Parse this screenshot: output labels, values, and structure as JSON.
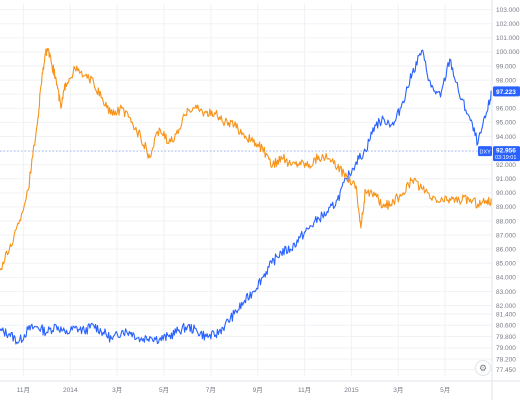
{
  "chart_data": {
    "type": "line",
    "title": "",
    "xlabel": "",
    "ylabel": "",
    "ylim": [
      77.0,
      103.4
    ],
    "y_ticks": [
      "77.450",
      "78.200",
      "79.000",
      "79.800",
      "80.600",
      "81.400",
      "82.000",
      "83.000",
      "84.000",
      "85.000",
      "86.000",
      "87.000",
      "88.000",
      "89.000",
      "90.000",
      "91.000",
      "92.000",
      "93.000",
      "94.000",
      "95.000",
      "96.000",
      "97.000",
      "98.000",
      "99.000",
      "100.000",
      "101.000",
      "102.000",
      "103.000"
    ],
    "x_ticks": [
      {
        "label": "11月",
        "x": 1
      },
      {
        "label": "2014",
        "x": 3
      },
      {
        "label": "3月",
        "x": 5
      },
      {
        "label": "5月",
        "x": 7
      },
      {
        "label": "7月",
        "x": 9
      },
      {
        "label": "9月",
        "x": 11
      },
      {
        "label": "11月",
        "x": 13
      },
      {
        "label": "2015",
        "x": 15
      },
      {
        "label": "3月",
        "x": 17
      },
      {
        "label": "5月",
        "x": 19
      }
    ],
    "grid": true,
    "reference_line": 92.956,
    "series": [
      {
        "color": "#2962ff",
        "last_value_label": "97.223",
        "points": [
          [
            0,
            80.2
          ],
          [
            0.4,
            80.0
          ],
          [
            0.8,
            79.4
          ],
          [
            1.2,
            80.3
          ],
          [
            1.6,
            80.5
          ],
          [
            2.0,
            80.1
          ],
          [
            2.4,
            80.6
          ],
          [
            2.8,
            80.0
          ],
          [
            3.2,
            80.4
          ],
          [
            3.6,
            80.2
          ],
          [
            4.0,
            80.6
          ],
          [
            4.4,
            80.1
          ],
          [
            4.8,
            79.6
          ],
          [
            5.2,
            80.2
          ],
          [
            5.6,
            80.1
          ],
          [
            6.0,
            79.6
          ],
          [
            6.4,
            79.8
          ],
          [
            6.8,
            79.6
          ],
          [
            7.2,
            79.8
          ],
          [
            7.6,
            80.2
          ],
          [
            8.0,
            80.5
          ],
          [
            8.4,
            80.2
          ],
          [
            8.8,
            79.8
          ],
          [
            9.2,
            79.9
          ],
          [
            9.6,
            80.6
          ],
          [
            10.0,
            81.4
          ],
          [
            10.4,
            82.2
          ],
          [
            10.8,
            83.0
          ],
          [
            11.2,
            84.0
          ],
          [
            11.6,
            85.0
          ],
          [
            12.0,
            85.8
          ],
          [
            12.4,
            86.0
          ],
          [
            12.8,
            86.8
          ],
          [
            13.2,
            87.5
          ],
          [
            13.6,
            88.2
          ],
          [
            14.0,
            88.6
          ],
          [
            14.4,
            89.5
          ],
          [
            14.8,
            91.0
          ],
          [
            15.2,
            92.2
          ],
          [
            15.6,
            93.0
          ],
          [
            16.0,
            94.8
          ],
          [
            16.4,
            95.2
          ],
          [
            16.8,
            94.8
          ],
          [
            17.2,
            96.5
          ],
          [
            17.6,
            98.5
          ],
          [
            18.0,
            100.1
          ],
          [
            18.4,
            97.5
          ],
          [
            18.8,
            96.8
          ],
          [
            19.2,
            99.5
          ],
          [
            19.6,
            97.0
          ],
          [
            20.0,
            95.5
          ],
          [
            20.4,
            93.5
          ],
          [
            20.8,
            95.8
          ],
          [
            21.0,
            97.2
          ]
        ]
      },
      {
        "color": "#f7931a",
        "points": [
          [
            0,
            84.5
          ],
          [
            0.4,
            86.0
          ],
          [
            0.8,
            87.8
          ],
          [
            1.2,
            90.2
          ],
          [
            1.6,
            95.0
          ],
          [
            1.8,
            98.5
          ],
          [
            2.0,
            100.2
          ],
          [
            2.2,
            99.2
          ],
          [
            2.4,
            98.0
          ],
          [
            2.6,
            96.0
          ],
          [
            2.8,
            97.8
          ],
          [
            3.2,
            98.8
          ],
          [
            3.6,
            98.3
          ],
          [
            4.0,
            97.8
          ],
          [
            4.4,
            96.5
          ],
          [
            4.8,
            95.5
          ],
          [
            5.2,
            96.0
          ],
          [
            5.6,
            95.0
          ],
          [
            6.0,
            94.0
          ],
          [
            6.4,
            92.5
          ],
          [
            6.8,
            94.6
          ],
          [
            7.2,
            93.5
          ],
          [
            7.6,
            94.2
          ],
          [
            8.0,
            96.0
          ],
          [
            8.4,
            96.0
          ],
          [
            8.8,
            95.7
          ],
          [
            9.2,
            95.6
          ],
          [
            9.6,
            95.0
          ],
          [
            10.0,
            94.8
          ],
          [
            10.4,
            94.2
          ],
          [
            10.8,
            93.6
          ],
          [
            11.2,
            93.2
          ],
          [
            11.6,
            91.8
          ],
          [
            12.0,
            92.6
          ],
          [
            12.4,
            92.0
          ],
          [
            12.8,
            92.2
          ],
          [
            13.2,
            92.0
          ],
          [
            13.6,
            92.6
          ],
          [
            14.0,
            92.4
          ],
          [
            14.4,
            91.8
          ],
          [
            14.8,
            91.2
          ],
          [
            15.2,
            90.5
          ],
          [
            15.4,
            87.5
          ],
          [
            15.6,
            90.2
          ],
          [
            16.0,
            89.8
          ],
          [
            16.4,
            89.0
          ],
          [
            16.8,
            89.4
          ],
          [
            17.2,
            90.0
          ],
          [
            17.6,
            90.9
          ],
          [
            18.0,
            90.3
          ],
          [
            18.4,
            89.6
          ],
          [
            18.8,
            89.4
          ],
          [
            19.2,
            89.6
          ],
          [
            19.6,
            89.5
          ],
          [
            20.0,
            89.6
          ],
          [
            20.4,
            89.2
          ],
          [
            20.8,
            89.5
          ],
          [
            21.0,
            89.4
          ]
        ]
      }
    ],
    "badges": {
      "blue_value": "97.223",
      "ref_symbol": "DXY",
      "ref_value": "92.956",
      "ref_time": "03:19:01"
    }
  },
  "icons": {
    "settings": "gear-icon"
  }
}
